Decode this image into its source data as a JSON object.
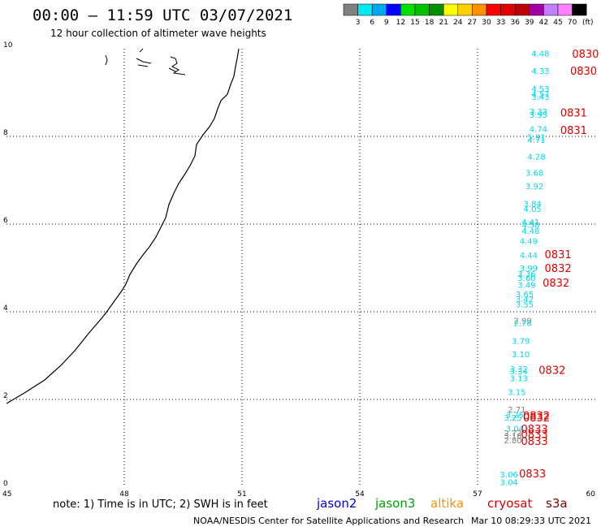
{
  "title": "00:00 – 11:59 UTC 03/07/2021",
  "subtitle": "12 hour collection of altimeter wave heights",
  "color_scale": {
    "unit": "(ft)",
    "swatches": [
      {
        "color": "#808080",
        "label": "3"
      },
      {
        "color": "#00e8f0",
        "label": "6"
      },
      {
        "color": "#00a8f0",
        "label": "9"
      },
      {
        "color": "#0000ff",
        "label": "12"
      },
      {
        "color": "#00e000",
        "label": "15"
      },
      {
        "color": "#00c000",
        "label": "18"
      },
      {
        "color": "#009000",
        "label": "21"
      },
      {
        "color": "#ffff00",
        "label": "24"
      },
      {
        "color": "#ffd000",
        "label": "27"
      },
      {
        "color": "#ff9000",
        "label": "30"
      },
      {
        "color": "#ff0000",
        "label": "33"
      },
      {
        "color": "#e00000",
        "label": "36"
      },
      {
        "color": "#c00000",
        "label": "39"
      },
      {
        "color": "#a000a0",
        "label": "42"
      },
      {
        "color": "#c080ff",
        "label": "45"
      },
      {
        "color": "#ff80ff",
        "label": "70"
      },
      {
        "color": "#000000",
        "label": ""
      }
    ]
  },
  "map": {
    "lon_min": 45,
    "lon_max": 60,
    "lat_min": 0,
    "lat_max": 10,
    "x_ticks": [
      "45",
      "48",
      "51",
      "54",
      "57",
      "60"
    ],
    "y_ticks": [
      "0",
      "2",
      "4",
      "6",
      "8",
      "10"
    ],
    "gridlines": "dotted"
  },
  "wave_heights": [
    {
      "lon": 58.6,
      "lat": 9.82,
      "text": "4.48",
      "style": "cyan"
    },
    {
      "lon": 58.6,
      "lat": 9.43,
      "text": "4.33",
      "style": "cyan"
    },
    {
      "lon": 58.6,
      "lat": 9.02,
      "text": "4.53",
      "style": "cyan"
    },
    {
      "lon": 58.6,
      "lat": 8.9,
      "text": "4.57",
      "style": "cyan"
    },
    {
      "lon": 58.6,
      "lat": 8.83,
      "text": "3.43",
      "style": "cyan"
    },
    {
      "lon": 58.55,
      "lat": 8.5,
      "text": "3.33",
      "style": "cyan"
    },
    {
      "lon": 58.55,
      "lat": 8.43,
      "text": "3.95",
      "style": "cyan"
    },
    {
      "lon": 58.55,
      "lat": 8.1,
      "text": "4.74",
      "style": "cyan"
    },
    {
      "lon": 58.5,
      "lat": 7.92,
      "text": "5.31",
      "style": "cyan"
    },
    {
      "lon": 58.5,
      "lat": 7.85,
      "text": "4.71",
      "style": "cyan"
    },
    {
      "lon": 58.5,
      "lat": 7.47,
      "text": "4.28",
      "style": "cyan"
    },
    {
      "lon": 58.45,
      "lat": 7.1,
      "text": "3.68",
      "style": "cyan"
    },
    {
      "lon": 58.45,
      "lat": 6.8,
      "text": "3.92",
      "style": "cyan"
    },
    {
      "lon": 58.4,
      "lat": 6.4,
      "text": "3.84",
      "style": "cyan"
    },
    {
      "lon": 58.4,
      "lat": 6.28,
      "text": "4.05",
      "style": "cyan"
    },
    {
      "lon": 58.35,
      "lat": 5.98,
      "text": "4.41",
      "style": "cyan"
    },
    {
      "lon": 58.35,
      "lat": 5.92,
      "text": "4.58",
      "style": "cyan"
    },
    {
      "lon": 58.35,
      "lat": 5.78,
      "text": "4.48",
      "style": "cyan"
    },
    {
      "lon": 58.3,
      "lat": 5.55,
      "text": "4.49",
      "style": "cyan"
    },
    {
      "lon": 58.3,
      "lat": 5.22,
      "text": "4.44",
      "style": "cyan"
    },
    {
      "lon": 58.3,
      "lat": 4.93,
      "text": "3.99",
      "style": "cyan"
    },
    {
      "lon": 58.25,
      "lat": 4.8,
      "text": "3.36",
      "style": "cyan"
    },
    {
      "lon": 58.25,
      "lat": 4.7,
      "text": "3.60",
      "style": "cyan"
    },
    {
      "lon": 58.25,
      "lat": 4.55,
      "text": "3.49",
      "style": "cyan"
    },
    {
      "lon": 58.2,
      "lat": 4.33,
      "text": "3.65",
      "style": "cyan"
    },
    {
      "lon": 58.2,
      "lat": 4.22,
      "text": "3.42",
      "style": "cyan"
    },
    {
      "lon": 58.2,
      "lat": 4.1,
      "text": "3.55",
      "style": "cyan"
    },
    {
      "lon": 58.15,
      "lat": 3.73,
      "text": "2.99",
      "style": "gray"
    },
    {
      "lon": 58.15,
      "lat": 3.68,
      "text": "2.76",
      "style": "cyan"
    },
    {
      "lon": 58.1,
      "lat": 3.27,
      "text": "3.79",
      "style": "cyan"
    },
    {
      "lon": 58.1,
      "lat": 2.96,
      "text": "3.10",
      "style": "cyan"
    },
    {
      "lon": 58.05,
      "lat": 2.63,
      "text": "3.32",
      "style": "cyan"
    },
    {
      "lon": 58.05,
      "lat": 2.57,
      "text": "3.34",
      "style": "cyan"
    },
    {
      "lon": 58.05,
      "lat": 2.42,
      "text": "3.13",
      "style": "cyan"
    },
    {
      "lon": 58.0,
      "lat": 2.1,
      "text": "3.15",
      "style": "cyan"
    },
    {
      "lon": 58.0,
      "lat": 1.7,
      "text": "2.71",
      "style": "gray"
    },
    {
      "lon": 57.95,
      "lat": 1.58,
      "text": "3.25",
      "style": "cyan"
    },
    {
      "lon": 57.9,
      "lat": 1.52,
      "text": "3.25",
      "style": "cyan"
    },
    {
      "lon": 57.95,
      "lat": 1.27,
      "text": "3.04",
      "style": "cyan"
    },
    {
      "lon": 57.9,
      "lat": 1.17,
      "text": "2.72",
      "style": "gray"
    },
    {
      "lon": 57.9,
      "lat": 1.1,
      "text": "3.18",
      "style": "gray"
    },
    {
      "lon": 57.9,
      "lat": 1.0,
      "text": "2.80",
      "style": "gray"
    },
    {
      "lon": 57.8,
      "lat": 0.22,
      "text": "3.06",
      "style": "cyan"
    },
    {
      "lon": 57.8,
      "lat": 0.05,
      "text": "3.04",
      "style": "cyan"
    }
  ],
  "pass_times": [
    {
      "lon": 59.75,
      "lat": 9.8,
      "text": "0830"
    },
    {
      "lon": 59.7,
      "lat": 9.41,
      "text": "0830"
    },
    {
      "lon": 59.45,
      "lat": 8.45,
      "text": "0831"
    },
    {
      "lon": 59.45,
      "lat": 8.06,
      "text": "0831"
    },
    {
      "lon": 59.05,
      "lat": 5.22,
      "text": "0831"
    },
    {
      "lon": 59.05,
      "lat": 4.91,
      "text": "0832"
    },
    {
      "lon": 59.0,
      "lat": 4.57,
      "text": "0832"
    },
    {
      "lon": 58.9,
      "lat": 2.58,
      "text": "0832"
    },
    {
      "lon": 58.5,
      "lat": 1.55,
      "text": "0832"
    },
    {
      "lon": 58.5,
      "lat": 1.5,
      "text": "0832"
    },
    {
      "lon": 58.45,
      "lat": 1.24,
      "text": "0833"
    },
    {
      "lon": 58.45,
      "lat": 1.12,
      "text": "0833"
    },
    {
      "lon": 58.45,
      "lat": 0.96,
      "text": "0833"
    },
    {
      "lon": 58.4,
      "lat": 0.22,
      "text": "0833"
    }
  ],
  "note": "note: 1) Time is in UTC; 2) SWH is in feet",
  "satellites": [
    {
      "name": "jason2",
      "color": "#0000e0"
    },
    {
      "name": "jason3",
      "color": "#00a000"
    },
    {
      "name": "altika",
      "color": "#ff9000"
    },
    {
      "name": "cryosat",
      "color": "#e00000"
    },
    {
      "name": "s3a",
      "color": "#800000"
    }
  ],
  "footer_left": "NOAA/NESDIS Center for Satellite Applications and Research",
  "footer_right": "Mar 10 08:29:33 UTC 2021"
}
